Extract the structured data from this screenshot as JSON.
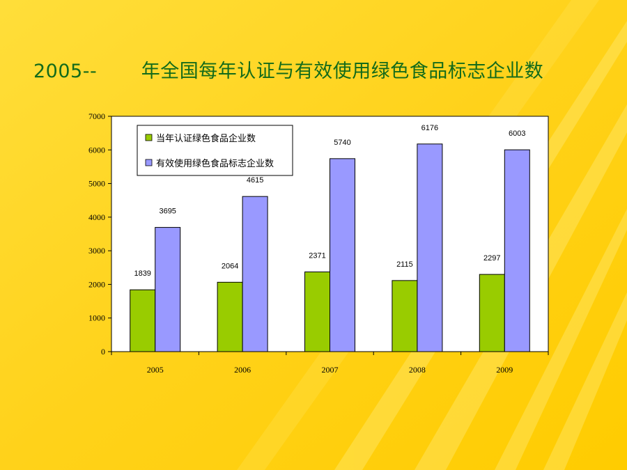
{
  "slide": {
    "title": "2005--       年全国每年认证与有效使用绿色食品标志企业数"
  },
  "colors": {
    "background": "#ffd21a",
    "title_text": "#136b1a",
    "series_1": "#99cc00",
    "series_2": "#9999ff"
  },
  "chart_data": {
    "type": "bar",
    "categories": [
      "2005",
      "2006",
      "2007",
      "2008",
      "2009"
    ],
    "series": [
      {
        "name": "当年认证绿色食品企业数",
        "values": [
          1839,
          2064,
          2371,
          2115,
          2297
        ],
        "color": "#99cc00"
      },
      {
        "name": "有效使用绿色食品标志企业数",
        "values": [
          3695,
          4615,
          5740,
          6176,
          6003
        ],
        "color": "#9999ff"
      }
    ],
    "ylim": [
      0,
      7000
    ],
    "yticks": [
      0,
      1000,
      2000,
      3000,
      4000,
      5000,
      6000,
      7000
    ],
    "grid": false,
    "legend_position": "top-left",
    "data_labels": true
  }
}
